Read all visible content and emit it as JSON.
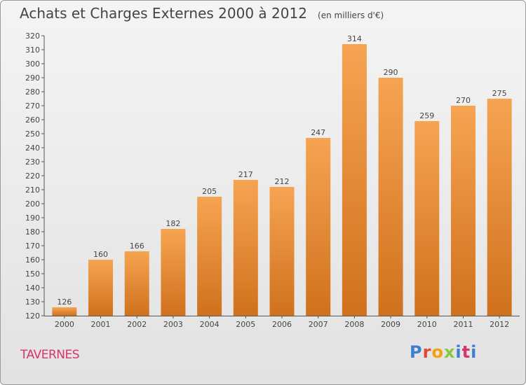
{
  "header": {
    "title": "Achats et Charges Externes 2000 à 2012",
    "unit": "(en milliers d'€)"
  },
  "footer": {
    "town": "TAVERNES",
    "logo": "Proxiti",
    "logo_colors": [
      "#3e7fcf",
      "#e8452f",
      "#f4a10a",
      "#8cc63f",
      "#3e7fcf",
      "#d8336e",
      "#3e7fcf"
    ]
  },
  "colors": {
    "bar_top": "#f6a452",
    "bar_bottom": "#d0711c",
    "text": "#444444",
    "town": "#d8336e"
  },
  "chart_data": {
    "type": "bar",
    "title": "Achats et Charges Externes 2000 à 2012",
    "categories": [
      "2000",
      "2001",
      "2002",
      "2003",
      "2004",
      "2005",
      "2006",
      "2007",
      "2008",
      "2009",
      "2010",
      "2011",
      "2012"
    ],
    "values": [
      126,
      160,
      166,
      182,
      205,
      217,
      212,
      247,
      314,
      290,
      259,
      270,
      275
    ],
    "ylim": [
      120,
      320
    ],
    "ytick_step": 10,
    "grid": false,
    "data_labels": true
  }
}
